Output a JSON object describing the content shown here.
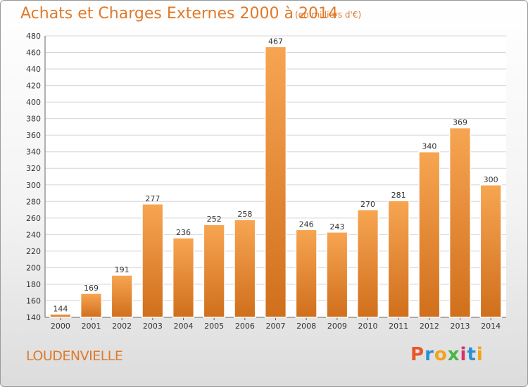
{
  "header": {
    "title": "Achats et Charges Externes 2000 à 2014",
    "subtitle": "(en milliers d'€)"
  },
  "footer": {
    "place": "LOUDENVIELLE",
    "logo": "Proxiti",
    "logo_colors": [
      "#e8562a",
      "#2b8fd6",
      "#f2a31b",
      "#4bb443",
      "#d6336c",
      "#2b8fd6",
      "#f2a31b"
    ]
  },
  "chart_data": {
    "type": "bar",
    "title": "Achats et Charges Externes 2000 à 2014",
    "subtitle": "(en milliers d'€)",
    "categories": [
      "2000",
      "2001",
      "2002",
      "2003",
      "2004",
      "2005",
      "2006",
      "2007",
      "2008",
      "2009",
      "2010",
      "2011",
      "2012",
      "2013",
      "2014"
    ],
    "values": [
      144,
      169,
      191,
      277,
      236,
      252,
      258,
      467,
      246,
      243,
      270,
      281,
      340,
      369,
      300
    ],
    "ylim": [
      140,
      480
    ],
    "yticks": [
      140,
      160,
      180,
      200,
      220,
      240,
      260,
      280,
      300,
      320,
      340,
      360,
      380,
      400,
      420,
      440,
      460,
      480
    ],
    "grid": true,
    "bar_color": "#f0913a",
    "bar_color_dark": "#d2721e"
  }
}
